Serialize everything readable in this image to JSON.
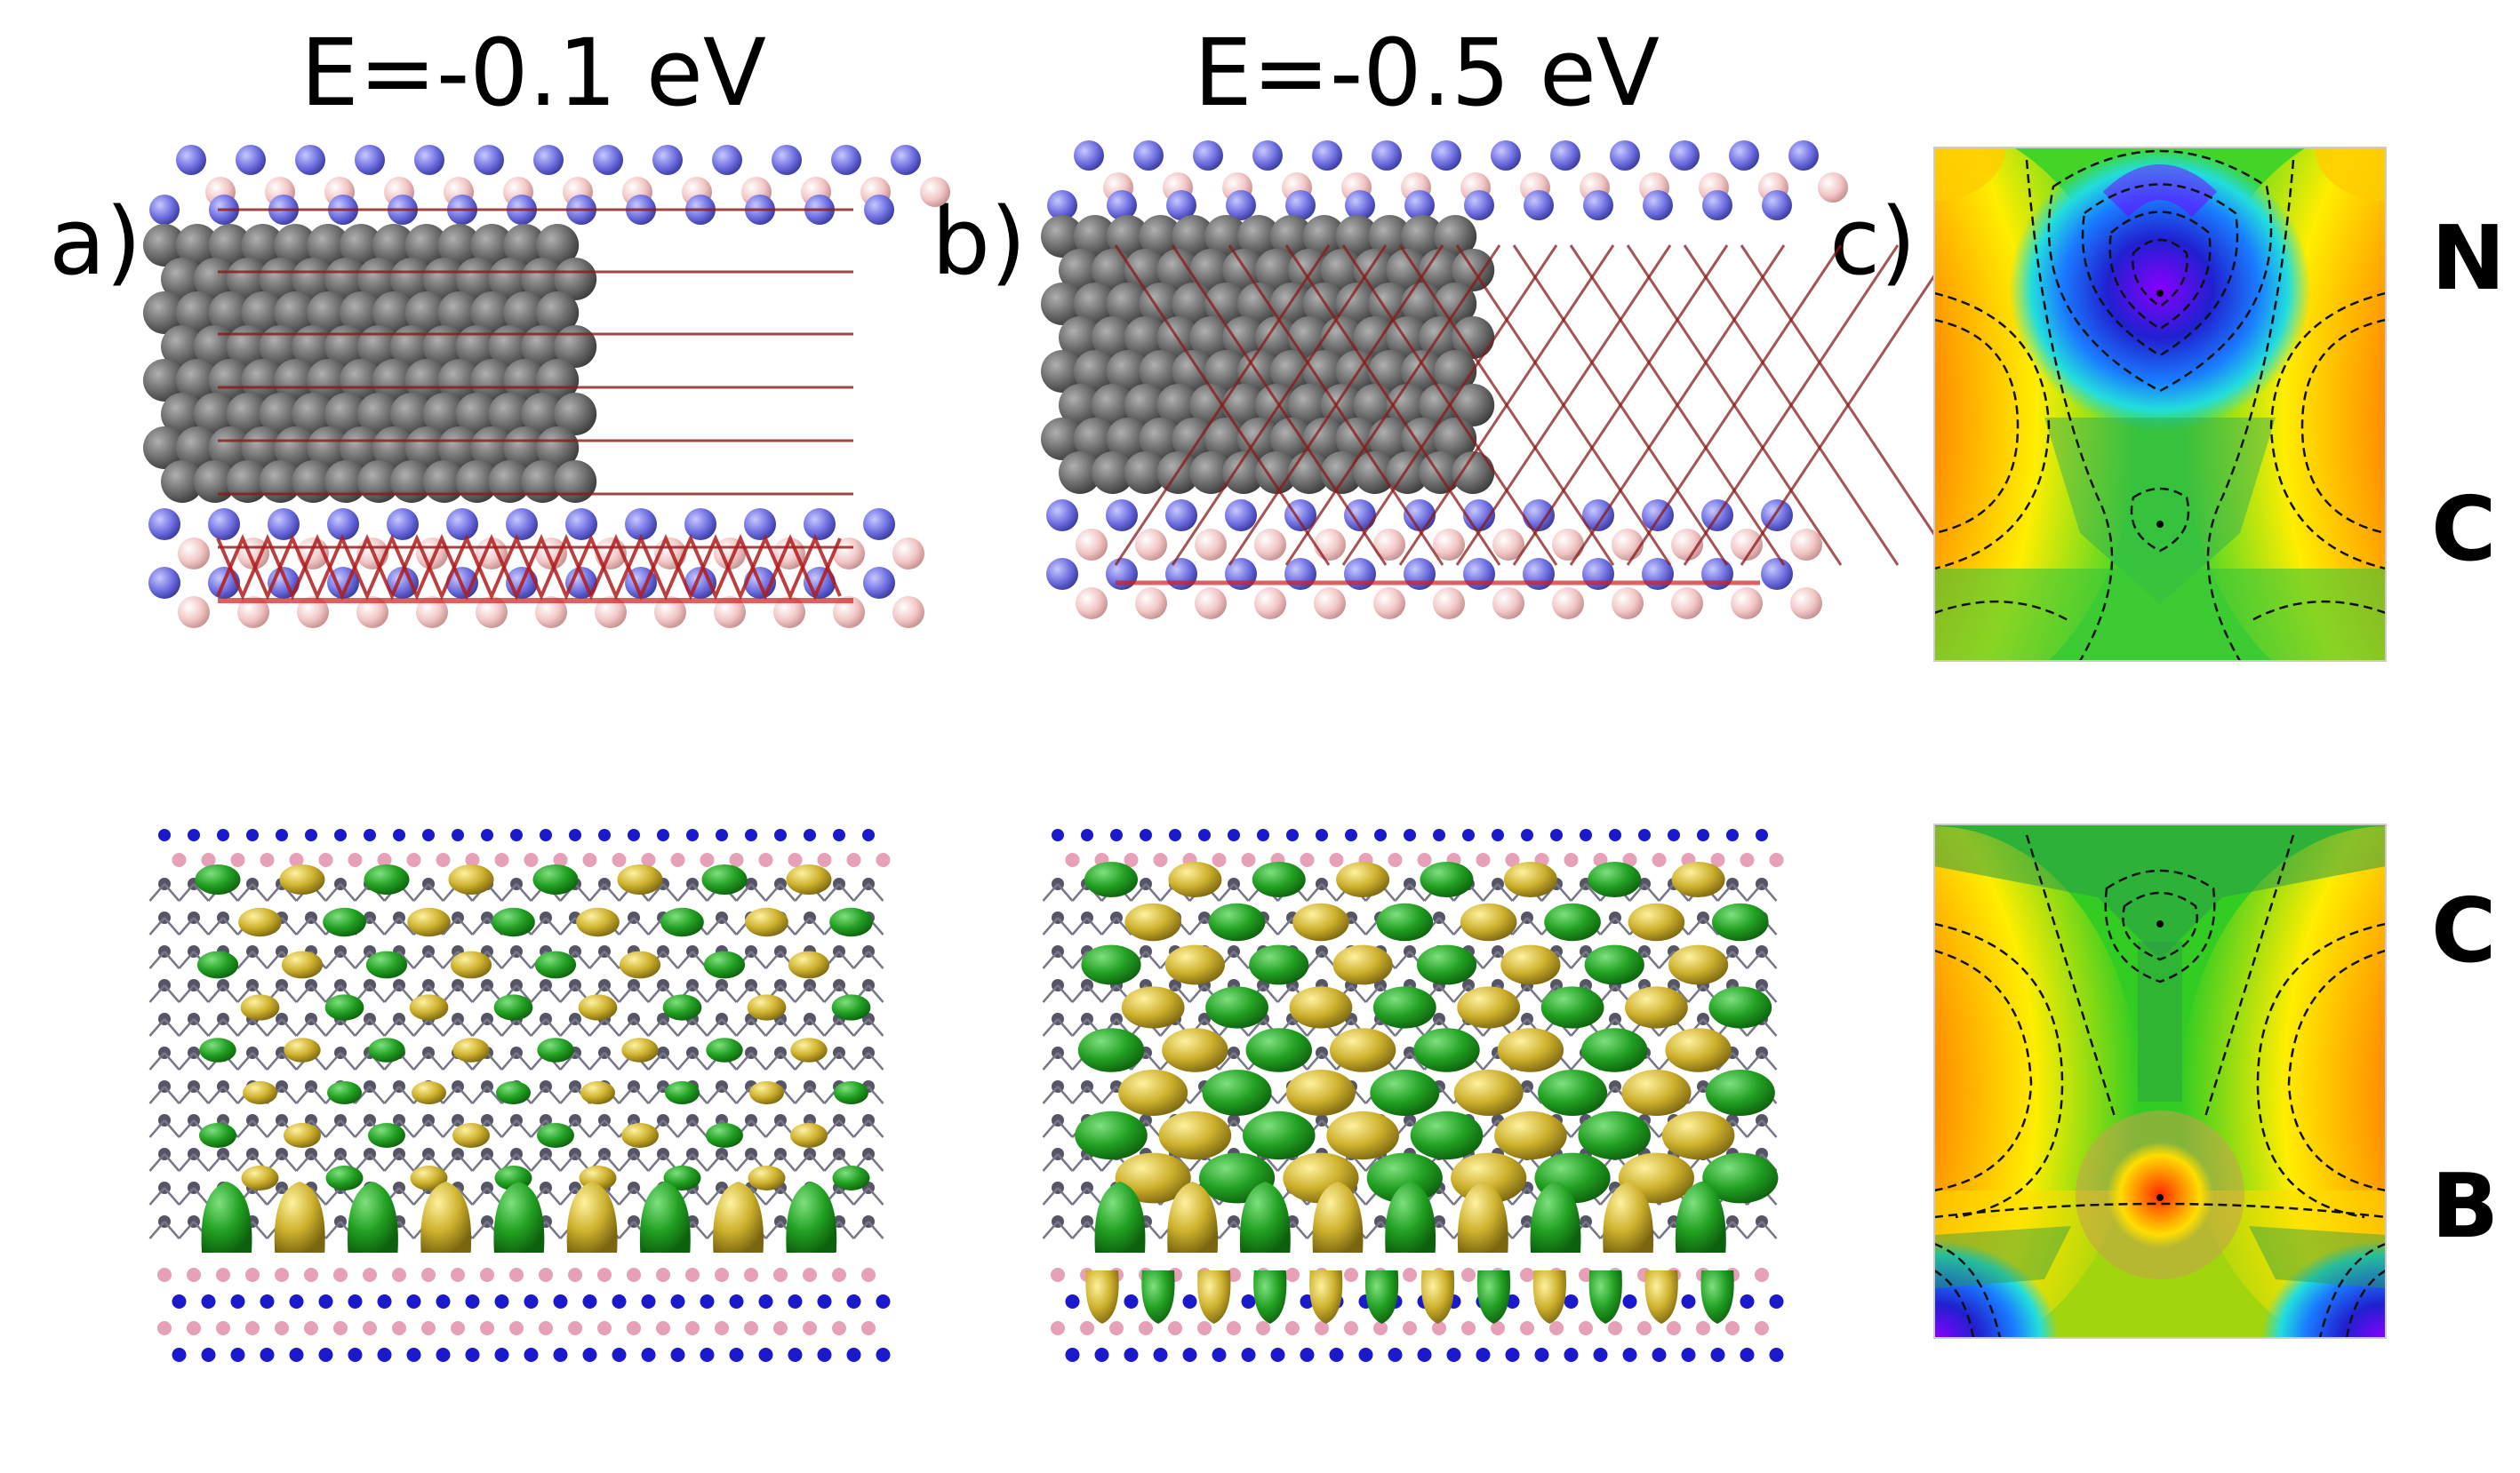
{
  "titles": {
    "left": "E=-0.1 eV",
    "middle": "E=-0.5 eV"
  },
  "panel_labels": {
    "a": "a)",
    "b": "b)",
    "c": "c)"
  },
  "map_labels": {
    "top_upper": "N",
    "top_lower": "C",
    "bottom_upper": "C",
    "bottom_lower": "B"
  },
  "colors": {
    "carbon_gray": "#666666",
    "nitrogen_blue": "#7777dd",
    "boron_pink": "#f0c4c4",
    "bond_red": "#8b1a1a",
    "lobe_green": "#22aa22",
    "lobe_yellow": "#d4b82a",
    "map_red": "#ff3300",
    "map_yellow": "#ffee00",
    "map_green": "#33cc33",
    "map_blue": "#2222cc"
  }
}
